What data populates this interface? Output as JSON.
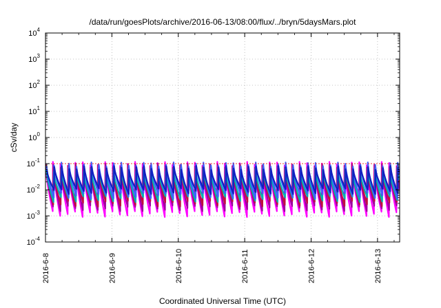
{
  "chart_data": {
    "type": "line",
    "title": "/data/run/goesPlots/archive/2016-06-13/08:00/flux/../bryn/5daysMars.plot",
    "xlabel": "Coordinated Universal Time (UTC)",
    "ylabel": "cSv/day",
    "y_scale": "log",
    "ylim_exponents": [
      -4,
      4
    ],
    "y_ticks": [
      {
        "base": "10",
        "exp": "-4"
      },
      {
        "base": "10",
        "exp": "-3"
      },
      {
        "base": "10",
        "exp": "-2"
      },
      {
        "base": "10",
        "exp": "-1"
      },
      {
        "base": "10",
        "exp": "0"
      },
      {
        "base": "10",
        "exp": "1"
      },
      {
        "base": "10",
        "exp": "2"
      },
      {
        "base": "10",
        "exp": "3"
      },
      {
        "base": "10",
        "exp": "4"
      }
    ],
    "x_ticks": [
      "2016-6-8",
      "2016-6-9",
      "2016-6-10",
      "2016-6-11",
      "2016-6-12",
      "2016-6-13"
    ],
    "xlim_days": [
      "2016-06-08 00:00",
      "2016-06-13 08:00"
    ],
    "grid": true,
    "reference_line_value": 0.1,
    "reference_line_color": "#ff0000",
    "pulse_period_hours": 2.7,
    "series": [
      {
        "color": "#ff00ff",
        "peak": 0.1,
        "trough": 0.0012
      },
      {
        "color": "#a000a0",
        "peak": 0.085,
        "trough": 0.002
      },
      {
        "color": "#c01040",
        "peak": 0.075,
        "trough": 0.003
      },
      {
        "color": "#00b0b0",
        "peak": 0.06,
        "trough": 0.0045
      },
      {
        "color": "#4060ff",
        "peak": 0.095,
        "trough": 0.006
      },
      {
        "color": "#1020c0",
        "peak": 0.07,
        "trough": 0.009
      }
    ]
  }
}
